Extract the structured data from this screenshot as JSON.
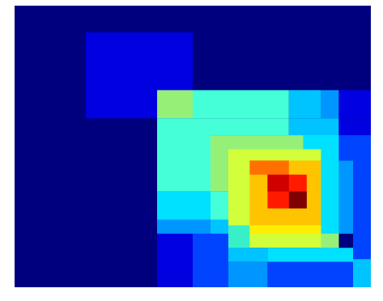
{
  "chart_data": {
    "type": "heatmap",
    "title": "",
    "xlabel": "",
    "ylabel": "",
    "colormap": "jet",
    "background_color": "#00007f",
    "palette": {
      "dark_blue": "#00007f",
      "blue": "#0000e0",
      "royal_blue": "#0044ff",
      "azure": "#0096ff",
      "sky": "#00c4ff",
      "cyan": "#00e0ff",
      "aqua": "#38f0c8",
      "turquoise": "#44ffd8",
      "pale_green": "#96f078",
      "yellow_green": "#d2ff3a",
      "yellow": "#ffee00",
      "amber": "#ffc400",
      "orange": "#ff7000",
      "red": "#ff1a00",
      "crimson": "#d00000",
      "dark_red": "#7f0000"
    },
    "cells": [
      {
        "x": [
          0.2,
          0.5
        ],
        "y": [
          0.095,
          0.4
        ],
        "color": "blue"
      },
      {
        "x": [
          0.4,
          0.5
        ],
        "y": [
          0.3,
          0.4
        ],
        "color": "pale_green"
      },
      {
        "x": [
          0.5,
          0.77
        ],
        "y": [
          0.3,
          0.4
        ],
        "color": "turquoise"
      },
      {
        "x": [
          0.77,
          0.86
        ],
        "y": [
          0.3,
          0.4
        ],
        "color": "sky"
      },
      {
        "x": [
          0.86,
          0.91
        ],
        "y": [
          0.3,
          0.4
        ],
        "color": "azure"
      },
      {
        "x": [
          0.91,
          1.0
        ],
        "y": [
          0.3,
          0.4
        ],
        "color": "blue"
      },
      {
        "x": [
          0.4,
          0.55
        ],
        "y": [
          0.4,
          0.66
        ],
        "color": "turquoise"
      },
      {
        "x": [
          0.55,
          0.77
        ],
        "y": [
          0.4,
          0.46
        ],
        "color": "turquoise"
      },
      {
        "x": [
          0.77,
          0.91
        ],
        "y": [
          0.4,
          0.46
        ],
        "color": "sky"
      },
      {
        "x": [
          0.91,
          1.0
        ],
        "y": [
          0.4,
          0.46
        ],
        "color": "blue"
      },
      {
        "x": [
          0.55,
          0.6
        ],
        "y": [
          0.46,
          0.66
        ],
        "color": "pale_green"
      },
      {
        "x": [
          0.6,
          0.91
        ],
        "y": [
          0.46,
          0.51
        ],
        "color": "pale_green"
      },
      {
        "x": [
          0.81,
          0.91
        ],
        "y": [
          0.46,
          0.51
        ],
        "color": "cyan"
      },
      {
        "x": [
          0.91,
          1.0
        ],
        "y": [
          0.46,
          0.51
        ],
        "color": "royal_blue"
      },
      {
        "x": [
          0.4,
          0.55
        ],
        "y": [
          0.66,
          0.76
        ],
        "color": "cyan"
      },
      {
        "x": [
          0.4,
          0.55
        ],
        "y": [
          0.76,
          0.81
        ],
        "color": "azure"
      },
      {
        "x": [
          0.55,
          0.6
        ],
        "y": [
          0.66,
          0.76
        ],
        "color": "turquoise"
      },
      {
        "x": [
          0.55,
          0.6
        ],
        "y": [
          0.76,
          0.81
        ],
        "color": "sky"
      },
      {
        "x": [
          0.6,
          0.91
        ],
        "y": [
          0.51,
          0.86
        ],
        "color": "yellow_green"
      },
      {
        "x": [
          0.66,
          0.86
        ],
        "y": [
          0.55,
          0.78
        ],
        "color": "amber"
      },
      {
        "x": [
          0.66,
          0.77
        ],
        "y": [
          0.55,
          0.6
        ],
        "color": "orange"
      },
      {
        "x": [
          0.71,
          0.82
        ],
        "y": [
          0.6,
          0.72
        ],
        "color": "red"
      },
      {
        "x": [
          0.71,
          0.77
        ],
        "y": [
          0.6,
          0.66
        ],
        "color": "crimson"
      },
      {
        "x": [
          0.77,
          0.82
        ],
        "y": [
          0.66,
          0.72
        ],
        "color": "dark_red"
      },
      {
        "x": [
          0.86,
          0.91
        ],
        "y": [
          0.51,
          0.81
        ],
        "color": "cyan"
      },
      {
        "x": [
          0.91,
          0.95
        ],
        "y": [
          0.55,
          0.81
        ],
        "color": "azure"
      },
      {
        "x": [
          0.95,
          1.0
        ],
        "y": [
          0.51,
          0.9
        ],
        "color": "royal_blue"
      },
      {
        "x": [
          0.91,
          1.0
        ],
        "y": [
          0.51,
          0.55
        ],
        "color": "royal_blue"
      },
      {
        "x": [
          0.6,
          0.66
        ],
        "y": [
          0.78,
          0.86
        ],
        "color": "aqua"
      },
      {
        "x": [
          0.86,
          0.91
        ],
        "y": [
          0.81,
          0.86
        ],
        "color": "pale_green"
      },
      {
        "x": [
          0.66,
          0.86
        ],
        "y": [
          0.78,
          0.81
        ],
        "color": "yellow"
      },
      {
        "x": [
          0.4,
          0.5
        ],
        "y": [
          0.81,
          1.0
        ],
        "color": "blue"
      },
      {
        "x": [
          0.5,
          0.6
        ],
        "y": [
          0.81,
          1.0
        ],
        "color": "royal_blue"
      },
      {
        "x": [
          0.6,
          0.71
        ],
        "y": [
          0.86,
          0.91
        ],
        "color": "sky"
      },
      {
        "x": [
          0.71,
          0.95
        ],
        "y": [
          0.86,
          0.91
        ],
        "color": "cyan"
      },
      {
        "x": [
          0.6,
          0.71
        ],
        "y": [
          0.91,
          1.0
        ],
        "color": "azure"
      },
      {
        "x": [
          0.71,
          0.95
        ],
        "y": [
          0.91,
          1.0
        ],
        "color": "royal_blue"
      },
      {
        "x": [
          0.95,
          1.0
        ],
        "y": [
          0.9,
          1.0
        ],
        "color": "sky"
      }
    ]
  }
}
